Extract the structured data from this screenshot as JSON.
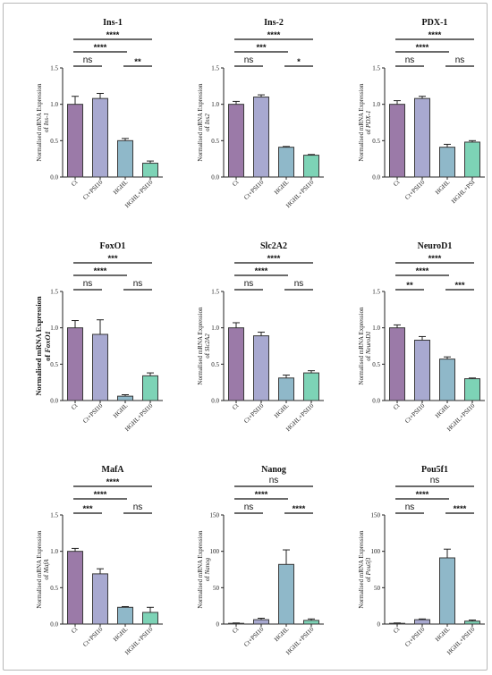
{
  "colors": {
    "categories": [
      "#9b7aa8",
      "#a8a9d0",
      "#8fb8c9",
      "#7dd3b6"
    ],
    "stroke": "#3a3a3a"
  },
  "chart_data": [
    {
      "type": "bar",
      "title": "Ins-1",
      "ylabel_line1": "Normalised mRNA Expression",
      "ylabel_line2_prefix": "of ",
      "ylabel_line2_italic": "Ins-1",
      "categories": [
        "Ct",
        "Ct+PSI10",
        "HGHL",
        "HGHL+PSI10"
      ],
      "values": [
        1.0,
        1.08,
        0.5,
        0.19
      ],
      "errors": [
        0.11,
        0.07,
        0.03,
        0.03
      ],
      "ylim": [
        0,
        1.5
      ],
      "yticks": [
        "0.0",
        "0.5",
        "1.0",
        "1.5"
      ],
      "significance": [
        {
          "from": 0,
          "to": 3,
          "label": "****"
        },
        {
          "from": 0,
          "to": 2,
          "label": "****"
        },
        {
          "from": 0,
          "to": 1,
          "label": "ns"
        },
        {
          "from": 2,
          "to": 3,
          "label": "**"
        }
      ]
    },
    {
      "type": "bar",
      "title": "Ins-2",
      "ylabel_line1": "Normalised mRNA Expression",
      "ylabel_line2_prefix": "of ",
      "ylabel_line2_italic": "Ins2",
      "categories": [
        "Ct",
        "Ct+PSI10",
        "HGHL",
        "HGHL+PSI10"
      ],
      "values": [
        1.0,
        1.1,
        0.41,
        0.3
      ],
      "errors": [
        0.04,
        0.03,
        0.01,
        0.01
      ],
      "ylim": [
        0,
        1.5
      ],
      "yticks": [
        "0.0",
        "0.5",
        "1.0",
        "1.5"
      ],
      "significance": [
        {
          "from": 0,
          "to": 3,
          "label": "****"
        },
        {
          "from": 0,
          "to": 2,
          "label": "***"
        },
        {
          "from": 0,
          "to": 1,
          "label": "ns"
        },
        {
          "from": 2,
          "to": 3,
          "label": "*"
        }
      ]
    },
    {
      "type": "bar",
      "title": "PDX-1",
      "ylabel_line1": "Normalised mRNA Expression",
      "ylabel_line2_prefix": "of ",
      "ylabel_line2_italic": "PDX-1",
      "categories": [
        "Ct",
        "Ct+PSI10",
        "HGHL",
        "HGHL+PSI"
      ],
      "values": [
        1.0,
        1.08,
        0.41,
        0.48
      ],
      "errors": [
        0.05,
        0.03,
        0.04,
        0.02
      ],
      "ylim": [
        0,
        1.5
      ],
      "yticks": [
        "0.0",
        "0.5",
        "1.0",
        "1.5"
      ],
      "significance": [
        {
          "from": 0,
          "to": 3,
          "label": "****"
        },
        {
          "from": 0,
          "to": 2,
          "label": "****"
        },
        {
          "from": 0,
          "to": 1,
          "label": "ns"
        },
        {
          "from": 2,
          "to": 3,
          "label": "ns"
        }
      ]
    },
    {
      "type": "bar",
      "title": "FoxO1",
      "ylabel_bold": true,
      "ylabel_line1": "Normalised mRNA Expression",
      "ylabel_line2_prefix": "of ",
      "ylabel_line2_italic": "FoxO1",
      "categories": [
        "Ct",
        "Ct+PSI10",
        "HGHL",
        "HGHL+PSI10"
      ],
      "values": [
        1.0,
        0.91,
        0.06,
        0.34
      ],
      "errors": [
        0.1,
        0.2,
        0.02,
        0.04
      ],
      "ylim": [
        0,
        1.5
      ],
      "yticks": [
        "0.0",
        "0.5",
        "1.0",
        "1.5"
      ],
      "significance": [
        {
          "from": 0,
          "to": 3,
          "label": "***"
        },
        {
          "from": 0,
          "to": 2,
          "label": "****"
        },
        {
          "from": 0,
          "to": 1,
          "label": "ns"
        },
        {
          "from": 2,
          "to": 3,
          "label": "ns"
        }
      ]
    },
    {
      "type": "bar",
      "title": "Slc2A2",
      "ylabel_line1": "Normalised mRNA Expression",
      "ylabel_line2_prefix": "of ",
      "ylabel_line2_italic": "Slc2A2",
      "categories": [
        "Ct",
        "Ct+PSI10",
        "HGHL",
        "HGHL+PSI10"
      ],
      "values": [
        1.0,
        0.89,
        0.31,
        0.38
      ],
      "errors": [
        0.07,
        0.05,
        0.04,
        0.03
      ],
      "ylim": [
        0,
        1.5
      ],
      "yticks": [
        "0.0",
        "0.5",
        "1.0",
        "1.5"
      ],
      "significance": [
        {
          "from": 0,
          "to": 3,
          "label": "****"
        },
        {
          "from": 0,
          "to": 2,
          "label": "****"
        },
        {
          "from": 0,
          "to": 1,
          "label": "ns"
        },
        {
          "from": 2,
          "to": 3,
          "label": "ns"
        }
      ]
    },
    {
      "type": "bar",
      "title": "NeuroD1",
      "ylabel_line1": "Normalised mRNA Expression",
      "ylabel_line2_prefix": "of ",
      "ylabel_line2_italic": "NeuroD1",
      "categories": [
        "Ct",
        "Ct+PSI10",
        "HGHL",
        "HGHL+PSI10"
      ],
      "values": [
        1.0,
        0.83,
        0.57,
        0.3
      ],
      "errors": [
        0.04,
        0.05,
        0.03,
        0.01
      ],
      "ylim": [
        0,
        1.5
      ],
      "yticks": [
        "0.0",
        "0.5",
        "1.0",
        "1.5"
      ],
      "significance": [
        {
          "from": 0,
          "to": 3,
          "label": "****"
        },
        {
          "from": 0,
          "to": 2,
          "label": "****"
        },
        {
          "from": 0,
          "to": 1,
          "label": "**"
        },
        {
          "from": 2,
          "to": 3,
          "label": "***"
        }
      ]
    },
    {
      "type": "bar",
      "title": "MafA",
      "ylabel_line1": "Normalised mRNA Expression",
      "ylabel_line2_prefix": "of ",
      "ylabel_line2_italic": "MafA",
      "categories": [
        "Ct",
        "Ct+PSI10",
        "HGHL",
        "HGHL+PSI10"
      ],
      "values": [
        1.0,
        0.69,
        0.23,
        0.16
      ],
      "errors": [
        0.04,
        0.07,
        0.01,
        0.07
      ],
      "ylim": [
        0,
        1.5
      ],
      "yticks": [
        "0.0",
        "0.5",
        "1.0",
        "1.5"
      ],
      "significance": [
        {
          "from": 0,
          "to": 3,
          "label": "****"
        },
        {
          "from": 0,
          "to": 2,
          "label": "****"
        },
        {
          "from": 0,
          "to": 1,
          "label": "***"
        },
        {
          "from": 2,
          "to": 3,
          "label": "ns"
        }
      ]
    },
    {
      "type": "bar",
      "title": "Nanog",
      "ylabel_line1": "Normalised mRNA Expression",
      "ylabel_line2_prefix": "of ",
      "ylabel_line2_italic": "Nanog",
      "categories": [
        "Ct",
        "Ct+PSI10",
        "HGHL",
        "HGHL+PSI10"
      ],
      "values": [
        1,
        6,
        82,
        5
      ],
      "errors": [
        0.5,
        2,
        20,
        2
      ],
      "ylim": [
        0,
        150
      ],
      "yticks": [
        "0",
        "50",
        "100",
        "150"
      ],
      "significance": [
        {
          "from": 0,
          "to": 3,
          "label": "ns"
        },
        {
          "from": 0,
          "to": 2,
          "label": "****"
        },
        {
          "from": 0,
          "to": 1,
          "label": "ns"
        },
        {
          "from": 2,
          "to": 3,
          "label": "****"
        }
      ]
    },
    {
      "type": "bar",
      "title": "Pou5f1",
      "ylabel_line1": "Normalised mRNA Expression",
      "ylabel_line2_prefix": "of ",
      "ylabel_line2_italic": "Pou5f1",
      "categories": [
        "Ct",
        "Ct+PSI10",
        "HGHL",
        "HGHL+PSI10"
      ],
      "values": [
        1,
        6,
        91,
        4
      ],
      "errors": [
        0.5,
        1,
        12,
        1.5
      ],
      "ylim": [
        0,
        150
      ],
      "yticks": [
        "0",
        "50",
        "100",
        "150"
      ],
      "significance": [
        {
          "from": 0,
          "to": 3,
          "label": "ns"
        },
        {
          "from": 0,
          "to": 2,
          "label": "****"
        },
        {
          "from": 0,
          "to": 1,
          "label": "ns"
        },
        {
          "from": 2,
          "to": 3,
          "label": "****"
        }
      ]
    }
  ]
}
